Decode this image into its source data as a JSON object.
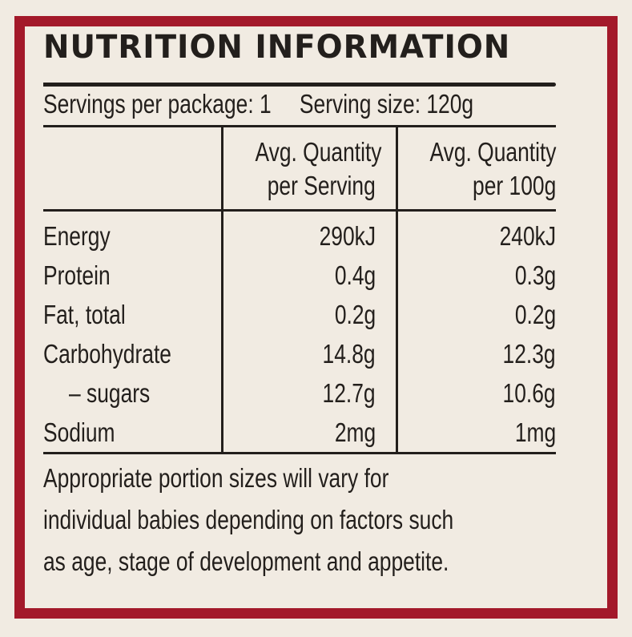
{
  "panel": {
    "title": "NUTRITION INFORMATION",
    "servings_per_package": "Servings per package: 1",
    "serving_size": "Serving size: 120g",
    "columns": [
      {
        "line1": "",
        "line2": ""
      },
      {
        "line1": "Avg. Quantity",
        "line2": "per Serving"
      },
      {
        "line1": "Avg. Quantity",
        "line2": "per 100g"
      }
    ],
    "rows": [
      {
        "name": "Energy",
        "per_serving": "290kJ",
        "per_100g": "240kJ"
      },
      {
        "name": "Protein",
        "per_serving": "0.4g",
        "per_100g": "0.3g"
      },
      {
        "name": "Fat, total",
        "per_serving": "0.2g",
        "per_100g": "0.2g"
      },
      {
        "name": "Carbohydrate",
        "per_serving": "14.8g",
        "per_100g": "12.3g"
      },
      {
        "name": "– sugars",
        "per_serving": "12.7g",
        "per_100g": "10.6g"
      },
      {
        "name": "Sodium",
        "per_serving": "2mg",
        "per_100g": "1mg"
      }
    ],
    "note_lines": [
      "Appropriate portion sizes will vary for",
      "individual babies depending on factors such",
      "as age, stage of development and appetite."
    ]
  },
  "colors": {
    "border": "#a3192a",
    "background": "#f1ebe2",
    "text": "#231f1c"
  }
}
